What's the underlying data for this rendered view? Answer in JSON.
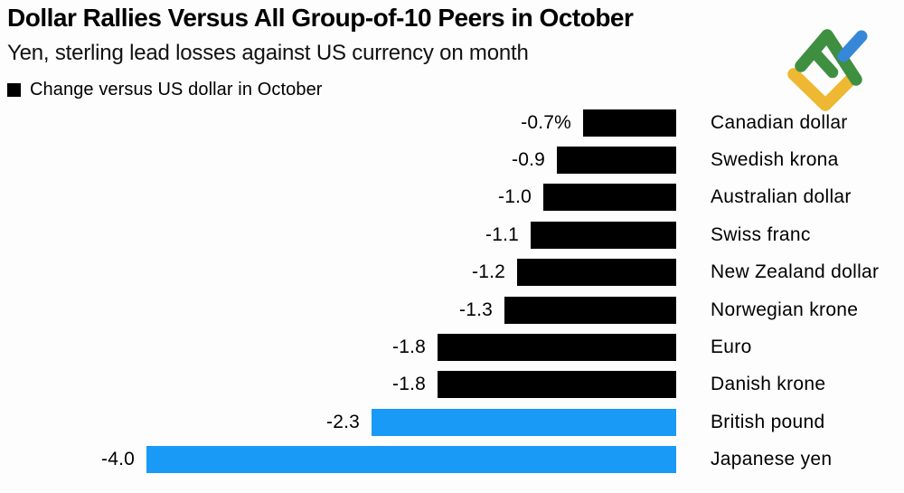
{
  "header": {
    "title": "Dollar Rallies Versus All Group-of-10 Peers in October",
    "subtitle": "Yen, sterling lead losses against US currency on month"
  },
  "legend": {
    "label": "Change versus US dollar in October",
    "swatch_color": "#000000"
  },
  "logo": {
    "description": "litefinance-style check logo",
    "colors": {
      "green": "#3F8F41",
      "yellow": "#EFB832",
      "blue": "#3787D8"
    }
  },
  "chart_data": {
    "type": "bar",
    "orientation": "horizontal",
    "title": "Dollar Rallies Versus All Group-of-10 Peers in October",
    "subtitle": "Yen, sterling lead losses against US currency on month",
    "legend": [
      "Change versus US dollar in October"
    ],
    "unit": "%",
    "xlim": [
      -4.0,
      0
    ],
    "bars_right_aligned": true,
    "axes_hidden": true,
    "grid": false,
    "categories": [
      "Canadian dollar",
      "Swedish krona",
      "Australian dollar",
      "Swiss franc",
      "New Zealand dollar",
      "Norwegian krone",
      "Euro",
      "Danish krone",
      "British pound",
      "Japanese yen"
    ],
    "values": [
      -0.7,
      -0.9,
      -1.0,
      -1.1,
      -1.2,
      -1.3,
      -1.8,
      -1.8,
      -2.3,
      -4.0
    ],
    "value_labels": [
      "-0.7%",
      "-0.9",
      "-1.0",
      "-1.1",
      "-1.2",
      "-1.3",
      "-1.8",
      "-1.8",
      "-2.3",
      "-4.0"
    ],
    "bar_colors": [
      "#000000",
      "#000000",
      "#000000",
      "#000000",
      "#000000",
      "#000000",
      "#000000",
      "#000000",
      "#189AF6",
      "#189AF6"
    ],
    "highlight_color": "#189AF6",
    "default_color": "#000000"
  }
}
